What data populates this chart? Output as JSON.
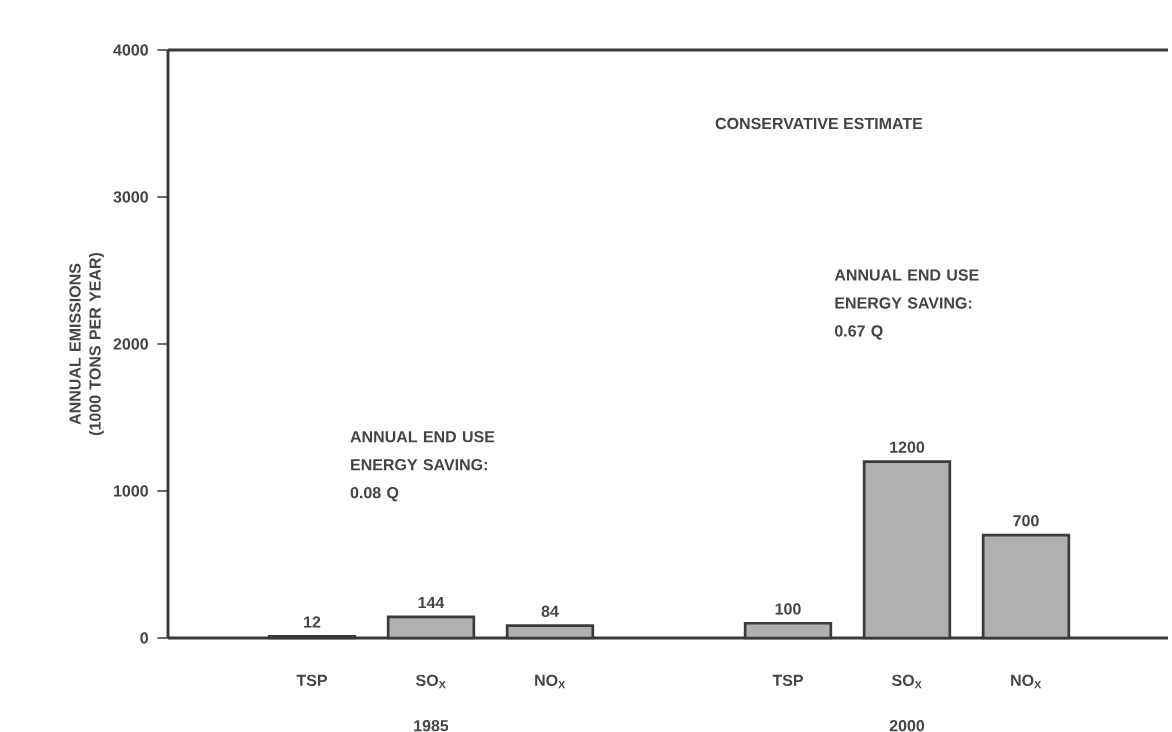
{
  "chart_data": {
    "type": "bar",
    "title": "CONSERVATIVE ESTIMATE",
    "ylabel": "ANNUAL EMISSIONS (1000 TONS PER YEAR)",
    "categories": [
      "TSP",
      "SO$_{X}$",
      "NO$_{X}$",
      null,
      "TSP",
      "SO$_{X}$",
      "NO$_{X}$"
    ],
    "values": [
      12,
      144,
      84,
      null,
      100,
      1200,
      700
    ],
    "color": "#3a3a3a",
    "ylim": [
      0,
      4000
    ],
    "yticks": [
      0,
      1000,
      2000,
      3000,
      4000
    ],
    "data_labels": true,
    "annotations": [
      "ANNUAL END USE ENERGY SAVING: 0.08 Q",
      "ANNUAL END USE ENERGY SAVING: 0.67 Q",
      "1985",
      "2000"
    ]
  }
}
